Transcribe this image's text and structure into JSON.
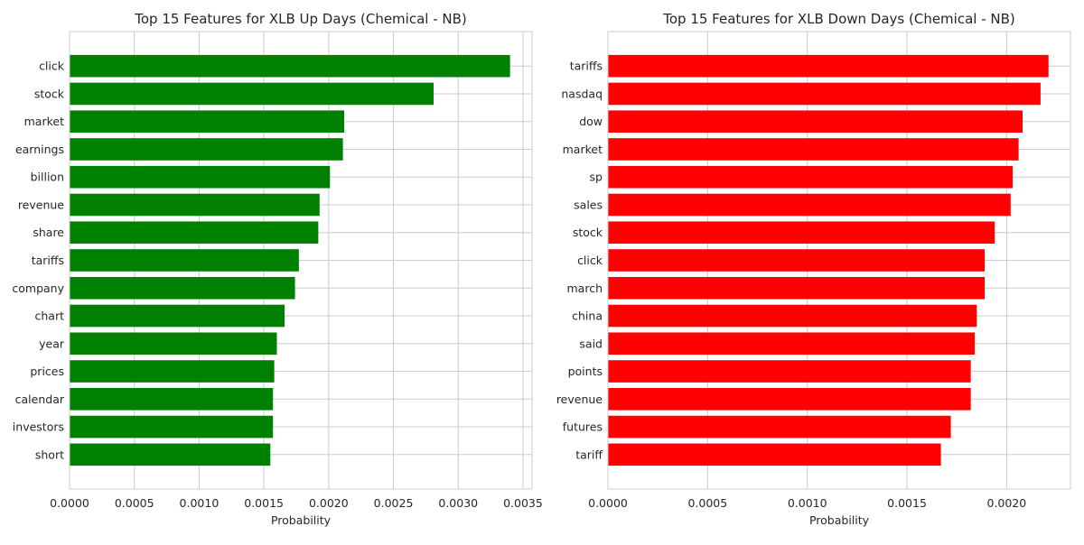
{
  "chart_data": [
    {
      "type": "bar",
      "orientation": "horizontal",
      "title": "Top 15 Features for XLB Up Days (Chemical - NB)",
      "xlabel": "Probability",
      "ylabel": "",
      "color": "#008000",
      "grid": true,
      "xlim": [
        0,
        0.00357
      ],
      "xticks": [
        0.0,
        0.0005,
        0.001,
        0.0015,
        0.002,
        0.0025,
        0.003,
        0.0035
      ],
      "xtick_labels": [
        "0.0000",
        "0.0005",
        "0.0010",
        "0.0015",
        "0.0020",
        "0.0025",
        "0.0030",
        "0.0035"
      ],
      "categories": [
        "click",
        "stock",
        "market",
        "earnings",
        "billion",
        "revenue",
        "share",
        "tariffs",
        "company",
        "chart",
        "year",
        "prices",
        "calendar",
        "investors",
        "short"
      ],
      "values": [
        0.0034,
        0.00281,
        0.00212,
        0.00211,
        0.00201,
        0.00193,
        0.00192,
        0.00177,
        0.00174,
        0.00166,
        0.0016,
        0.00158,
        0.00157,
        0.00157,
        0.00155
      ]
    },
    {
      "type": "bar",
      "orientation": "horizontal",
      "title": "Top 15 Features for XLB Down Days (Chemical - NB)",
      "xlabel": "Probability",
      "ylabel": "",
      "color": "#ff0000",
      "grid": true,
      "xlim": [
        0,
        0.00232
      ],
      "xticks": [
        0.0,
        0.0005,
        0.001,
        0.0015,
        0.002
      ],
      "xtick_labels": [
        "0.0000",
        "0.0005",
        "0.0010",
        "0.0015",
        "0.0020"
      ],
      "categories": [
        "tariffs",
        "nasdaq",
        "dow",
        "market",
        "sp",
        "sales",
        "stock",
        "click",
        "march",
        "china",
        "said",
        "points",
        "revenue",
        "futures",
        "tariff"
      ],
      "values": [
        0.00221,
        0.00217,
        0.00208,
        0.00206,
        0.00203,
        0.00202,
        0.00194,
        0.00189,
        0.00189,
        0.00185,
        0.00184,
        0.00182,
        0.00182,
        0.00172,
        0.00167
      ]
    }
  ]
}
